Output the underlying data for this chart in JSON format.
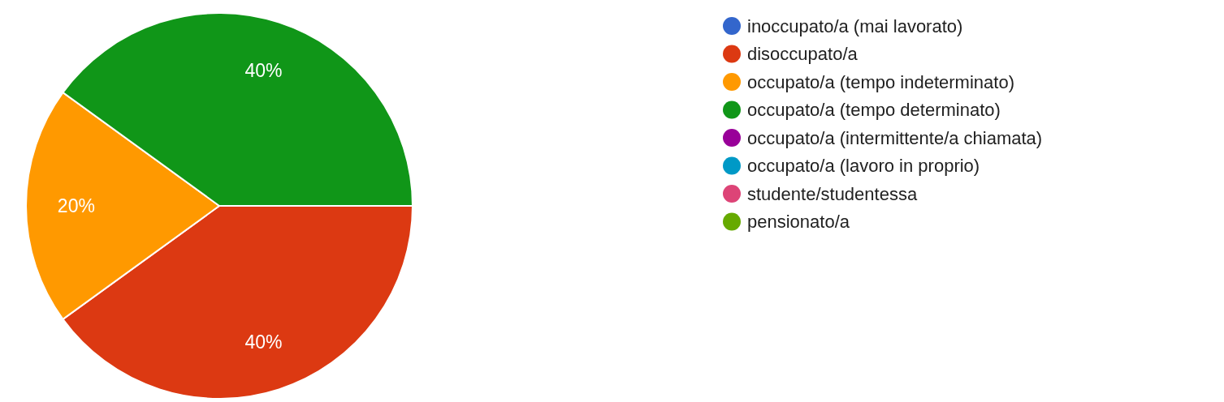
{
  "chart_data": {
    "type": "pie",
    "categories": [
      "inoccupato/a (mai lavorato)",
      "disoccupato/a",
      "occupato/a (tempo indeterminato)",
      "occupato/a (tempo determinato)",
      "occupato/a (intermittente/a chiamata)",
      "occupato/a (lavoro in proprio)",
      "studente/studentessa",
      "pensionato/a"
    ],
    "values": [
      0,
      40,
      20,
      40,
      0,
      0,
      0,
      0
    ],
    "colors": [
      "#3366cc",
      "#dc3912",
      "#ff9900",
      "#109618",
      "#990099",
      "#0099c6",
      "#dd4477",
      "#66aa00"
    ],
    "value_labels": [
      null,
      "40%",
      "20%",
      "40%",
      null,
      null,
      null,
      null
    ],
    "legend": "right"
  }
}
